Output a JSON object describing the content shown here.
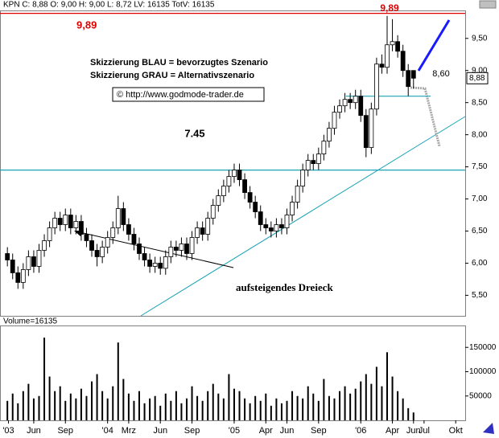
{
  "header": "KPN C: 8,88 O: 9,00 H: 9,00 L: 8,72 LV: 16135 TotV: 16135",
  "chart_data": [
    {
      "type": "candlestick",
      "xlim": [
        1.8,
        45.9
      ],
      "xticks": [
        {
          "value": 2.6,
          "label": "'03"
        },
        {
          "value": 5,
          "label": "Jun"
        },
        {
          "value": 8,
          "label": "Sep"
        },
        {
          "value": 12,
          "label": "'04"
        },
        {
          "value": 14,
          "label": "Mrz"
        },
        {
          "value": 17,
          "label": "Jun"
        },
        {
          "value": 20,
          "label": "Sep"
        },
        {
          "value": 24,
          "label": "'05"
        },
        {
          "value": 27,
          "label": "Apr"
        },
        {
          "value": 29,
          "label": "Jun"
        },
        {
          "value": 32,
          "label": "Sep"
        },
        {
          "value": 36,
          "label": "'06"
        },
        {
          "value": 39,
          "label": "Apr"
        },
        {
          "value": 41,
          "label": "Jun"
        },
        {
          "value": 42,
          "label": "Jul"
        },
        {
          "value": 45,
          "label": "Okt"
        }
      ],
      "ylim": [
        5.18,
        9.935
      ],
      "yticks": [
        {
          "value": 5.5,
          "label": "5,50"
        },
        {
          "value": 6,
          "label": "6,00"
        },
        {
          "value": 6.5,
          "label": "6,50"
        },
        {
          "value": 7,
          "label": "7,00"
        },
        {
          "value": 7.5,
          "label": "7,50"
        },
        {
          "value": 8,
          "label": "8,00"
        },
        {
          "value": 8.5,
          "label": "8,50"
        },
        {
          "value": 9,
          "label": "9,00"
        },
        {
          "value": 9.5,
          "label": "9,50"
        }
      ],
      "up_color": "#ffffff",
      "down_color": "#000000",
      "x": [
        2.5,
        3,
        3.5,
        4,
        4.5,
        5,
        5.5,
        6,
        6.5,
        7,
        7.5,
        8,
        8.5,
        9,
        9.5,
        10,
        10.5,
        11,
        11.5,
        12,
        12.5,
        13,
        13.5,
        14,
        14.5,
        15,
        15.5,
        16,
        16.5,
        17,
        17.5,
        18,
        18.5,
        19,
        19.5,
        20,
        20.5,
        21,
        21.5,
        22,
        22.5,
        23,
        23.5,
        24,
        24.5,
        25,
        25.5,
        26,
        26.5,
        27,
        27.5,
        28,
        28.5,
        29,
        29.5,
        30,
        30.5,
        31,
        31.5,
        32,
        32.5,
        33,
        33.5,
        34,
        34.5,
        35,
        35.5,
        36,
        36.5,
        37,
        37.5,
        38,
        38.5,
        39,
        39.5,
        40,
        40.5,
        41
      ],
      "ohlc": [
        [
          6.15,
          6.25,
          5.95,
          6.05
        ],
        [
          6.05,
          6.15,
          5.75,
          5.85
        ],
        [
          5.85,
          5.95,
          5.6,
          5.7
        ],
        [
          5.7,
          6.0,
          5.6,
          5.9
        ],
        [
          5.9,
          6.2,
          5.8,
          6.1
        ],
        [
          6.1,
          6.2,
          5.85,
          5.95
        ],
        [
          5.95,
          6.3,
          5.85,
          6.2
        ],
        [
          6.2,
          6.45,
          6.1,
          6.35
        ],
        [
          6.35,
          6.65,
          6.25,
          6.55
        ],
        [
          6.55,
          6.8,
          6.45,
          6.7
        ],
        [
          6.7,
          6.8,
          6.5,
          6.6
        ],
        [
          6.6,
          6.85,
          6.5,
          6.75
        ],
        [
          6.75,
          6.85,
          6.45,
          6.55
        ],
        [
          6.55,
          6.75,
          6.45,
          6.65
        ],
        [
          6.65,
          6.75,
          6.35,
          6.45
        ],
        [
          6.45,
          6.55,
          6.25,
          6.35
        ],
        [
          6.35,
          6.45,
          6.1,
          6.2
        ],
        [
          6.2,
          6.3,
          5.95,
          6.1
        ],
        [
          6.1,
          6.35,
          6.0,
          6.25
        ],
        [
          6.25,
          6.5,
          6.15,
          6.4
        ],
        [
          6.4,
          6.65,
          6.3,
          6.55
        ],
        [
          6.55,
          7.05,
          6.45,
          6.85
        ],
        [
          6.85,
          6.95,
          6.5,
          6.6
        ],
        [
          6.6,
          6.7,
          6.35,
          6.45
        ],
        [
          6.45,
          6.55,
          6.2,
          6.3
        ],
        [
          6.3,
          6.4,
          6.05,
          6.15
        ],
        [
          6.15,
          6.25,
          5.95,
          6.05
        ],
        [
          6.05,
          6.15,
          5.85,
          5.95
        ],
        [
          5.95,
          6.1,
          5.85,
          6.0
        ],
        [
          6.0,
          6.1,
          5.82,
          5.92
        ],
        [
          5.92,
          6.2,
          5.82,
          6.1
        ],
        [
          6.1,
          6.35,
          6.0,
          6.25
        ],
        [
          6.25,
          6.35,
          6.1,
          6.2
        ],
        [
          6.2,
          6.4,
          6.1,
          6.3
        ],
        [
          6.3,
          6.4,
          6.05,
          6.15
        ],
        [
          6.15,
          6.5,
          6.05,
          6.4
        ],
        [
          6.4,
          6.65,
          6.3,
          6.55
        ],
        [
          6.55,
          6.65,
          6.35,
          6.45
        ],
        [
          6.45,
          6.8,
          6.35,
          6.7
        ],
        [
          6.7,
          7.0,
          6.6,
          6.9
        ],
        [
          6.9,
          7.15,
          6.8,
          7.05
        ],
        [
          7.05,
          7.3,
          6.95,
          7.2
        ],
        [
          7.2,
          7.45,
          7.1,
          7.35
        ],
        [
          7.35,
          7.55,
          7.25,
          7.45
        ],
        [
          7.45,
          7.55,
          7.2,
          7.3
        ],
        [
          7.3,
          7.4,
          7.0,
          7.1
        ],
        [
          7.1,
          7.2,
          6.85,
          6.95
        ],
        [
          6.95,
          7.05,
          6.7,
          6.8
        ],
        [
          6.8,
          6.9,
          6.5,
          6.6
        ],
        [
          6.6,
          6.7,
          6.45,
          6.55
        ],
        [
          6.55,
          6.65,
          6.4,
          6.5
        ],
        [
          6.5,
          6.7,
          6.4,
          6.6
        ],
        [
          6.6,
          6.7,
          6.45,
          6.55
        ],
        [
          6.55,
          6.85,
          6.45,
          6.75
        ],
        [
          6.75,
          7.05,
          6.65,
          6.95
        ],
        [
          6.95,
          7.3,
          6.85,
          7.2
        ],
        [
          7.2,
          7.55,
          7.1,
          7.45
        ],
        [
          7.45,
          7.7,
          7.35,
          7.6
        ],
        [
          7.6,
          7.7,
          7.45,
          7.55
        ],
        [
          7.55,
          7.8,
          7.45,
          7.7
        ],
        [
          7.7,
          8.0,
          7.6,
          7.9
        ],
        [
          7.9,
          8.2,
          7.8,
          8.1
        ],
        [
          8.1,
          8.45,
          8.0,
          8.35
        ],
        [
          8.35,
          8.55,
          8.25,
          8.45
        ],
        [
          8.45,
          8.65,
          8.35,
          8.55
        ],
        [
          8.55,
          8.65,
          8.4,
          8.5
        ],
        [
          8.5,
          8.7,
          8.4,
          8.6
        ],
        [
          8.6,
          8.7,
          8.2,
          8.3
        ],
        [
          8.3,
          8.4,
          7.65,
          7.8
        ],
        [
          7.8,
          8.5,
          7.7,
          8.4
        ],
        [
          8.4,
          9.2,
          8.3,
          9.1
        ],
        [
          9.1,
          9.25,
          8.95,
          9.05
        ],
        [
          9.05,
          9.85,
          8.95,
          9.4
        ],
        [
          9.4,
          9.8,
          9.3,
          9.45
        ],
        [
          9.45,
          9.55,
          9.2,
          9.3
        ],
        [
          9.3,
          9.4,
          8.9,
          9.0
        ],
        [
          9.0,
          9.1,
          8.6,
          8.75
        ],
        [
          9.0,
          9.0,
          8.72,
          8.88
        ]
      ],
      "levels": [
        {
          "value": 9.89,
          "label": "9,89",
          "color": "#e00000"
        },
        {
          "value": 7.45,
          "label": "7.45",
          "color": "#1aa3b5"
        },
        {
          "value": 8.6,
          "label": "8,60",
          "color": "#1aa3b5"
        }
      ],
      "last_price": {
        "value": 8.88,
        "label": "8,88"
      },
      "annotations": [
        "Skizzierung BLAU = bevorzugtes Szenario",
        "Skizzierung GRAU = Alternativszenario",
        "© http://www.godmode-trader.de",
        "aufsteigendes Dreieck"
      ]
    },
    {
      "type": "bar",
      "title": "Volume=16135",
      "color": "#000000",
      "ylim": [
        0,
        195000
      ],
      "yticks": [
        50000,
        100000,
        150000
      ],
      "values": [
        40000,
        55000,
        35000,
        60000,
        75000,
        45000,
        50000,
        170000,
        90000,
        60000,
        70000,
        40000,
        55000,
        45000,
        65000,
        50000,
        80000,
        95000,
        60000,
        45000,
        70000,
        160000,
        85000,
        55000,
        40000,
        60000,
        35000,
        45000,
        50000,
        30000,
        55000,
        40000,
        60000,
        35000,
        45000,
        70000,
        50000,
        40000,
        60000,
        75000,
        55000,
        45000,
        95000,
        65000,
        60000,
        45000,
        35000,
        50000,
        40000,
        55000,
        30000,
        45000,
        35000,
        40000,
        60000,
        50000,
        45000,
        70000,
        55000,
        40000,
        85000,
        50000,
        45000,
        60000,
        70000,
        55000,
        65000,
        80000,
        95000,
        75000,
        110000,
        70000,
        140000,
        90000,
        60000,
        45000,
        25000,
        16135
      ]
    }
  ]
}
